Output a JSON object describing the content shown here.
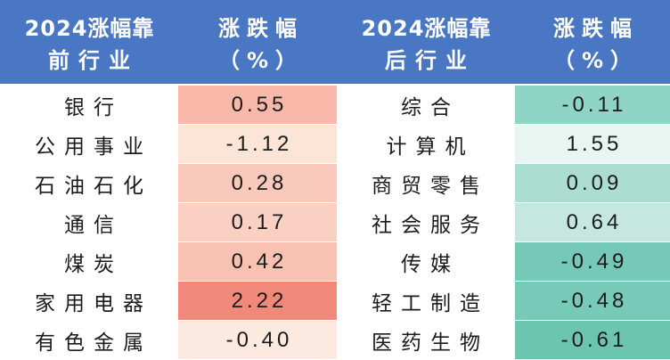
{
  "chart_data": {
    "type": "table",
    "header_color": "#4A77C3",
    "columns": [
      {
        "line1": "2024涨幅靠",
        "line2": "前行业"
      },
      {
        "line1": "涨跌幅",
        "line2": "（%）"
      },
      {
        "line1": "2024涨幅靠",
        "line2": "后行业"
      },
      {
        "line1": "涨跌幅",
        "line2": "（%）"
      }
    ],
    "rows": [
      {
        "top_industry": "银行",
        "top_change": "0.55",
        "top_color": "#F8B9AA",
        "bottom_industry": "综合",
        "bottom_change": "-0.11",
        "bottom_color": "#8FD4C4"
      },
      {
        "top_industry": "公用事业",
        "top_change": "-1.12",
        "top_color": "#FCE4D6",
        "bottom_industry": "计算机",
        "bottom_change": "1.55",
        "bottom_color": "#E8F5F0"
      },
      {
        "top_industry": "石油石化",
        "top_change": "0.28",
        "top_color": "#F9C9BB",
        "bottom_industry": "商贸零售",
        "bottom_change": "0.09",
        "bottom_color": "#ABDDD0"
      },
      {
        "top_industry": "通信",
        "top_change": "0.17",
        "top_color": "#FAD0C3",
        "bottom_industry": "社会服务",
        "bottom_change": "0.64",
        "bottom_color": "#C6E7DF"
      },
      {
        "top_industry": "煤炭",
        "top_change": "0.42",
        "top_color": "#F9C1B2",
        "bottom_industry": "传媒",
        "bottom_change": "-0.49",
        "bottom_color": "#76C9B6"
      },
      {
        "top_industry": "家用电器",
        "top_change": "2.22",
        "top_color": "#F1897A",
        "bottom_industry": "轻工制造",
        "bottom_change": "-0.48",
        "bottom_color": "#77CAB7"
      },
      {
        "top_industry": "有色金属",
        "top_change": "-0.40",
        "top_color": "#FCE9E0",
        "bottom_industry": "医药生物",
        "bottom_change": "-0.61",
        "bottom_color": "#6BC5AF"
      }
    ]
  }
}
